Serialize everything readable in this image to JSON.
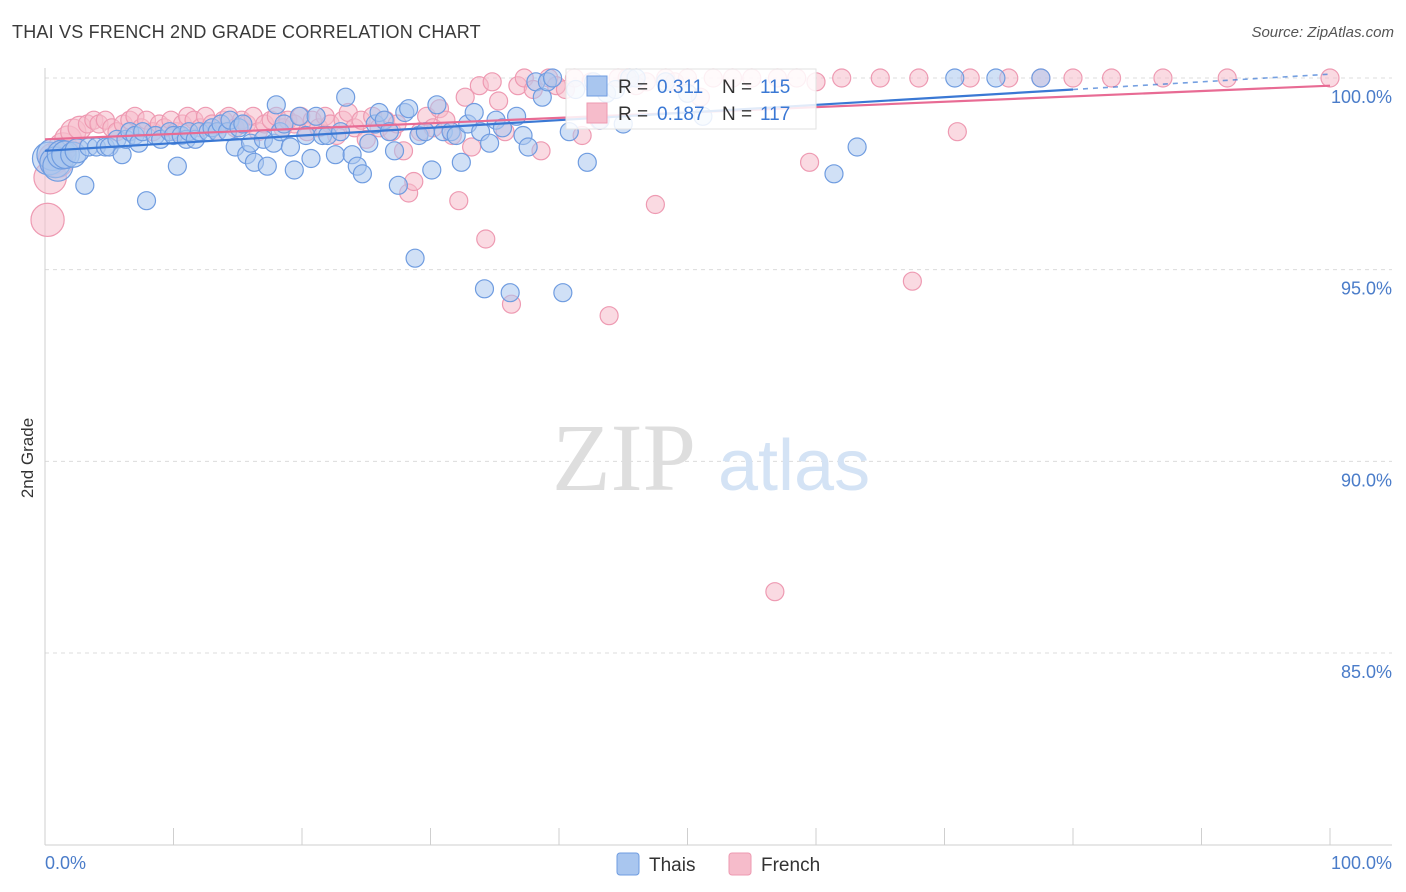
{
  "header": {
    "title": "THAI VS FRENCH 2ND GRADE CORRELATION CHART",
    "source": "Source: ZipAtlas.com"
  },
  "watermark": {
    "zip": "ZIP",
    "atlas": "atlas"
  },
  "colors": {
    "thais_fill": "#a9c6ef",
    "thais_stroke": "#6f9ce0",
    "thais_line": "#3a78d4",
    "french_fill": "#f6bccb",
    "french_stroke": "#ee9ab2",
    "french_line": "#e86b94",
    "tick_text": "#4a7cc9",
    "grid": "#dcdcdc"
  },
  "legend": {
    "rows": [
      {
        "r_label": "R = ",
        "r_value": "0.311",
        "n_label": "N = ",
        "n_value": "115"
      },
      {
        "r_label": "R = ",
        "r_value": "0.187",
        "n_label": "N = ",
        "n_value": "117"
      }
    ]
  },
  "chart_data": {
    "type": "scatter",
    "title": "THAI VS FRENCH 2ND GRADE CORRELATION CHART",
    "xlabel": "",
    "ylabel": "2nd Grade",
    "xlim": [
      0,
      100
    ],
    "ylim": [
      80.5,
      100.7
    ],
    "x_tick_labels": [
      "0.0%",
      "100.0%"
    ],
    "y_ticks": [
      100,
      95,
      90,
      85
    ],
    "y_tick_labels": [
      "100.0%",
      "95.0%",
      "90.0%",
      "85.0%"
    ],
    "grid": true,
    "legend_position": "top-center",
    "series": [
      {
        "name": "Thais",
        "r": 0.311,
        "n": 115,
        "trend": {
          "x": [
            0,
            80
          ],
          "y": [
            98.1,
            99.7
          ]
        },
        "points": [
          [
            0.3,
            97.9
          ],
          [
            0.6,
            98.0
          ],
          [
            0.8,
            97.8
          ],
          [
            1.0,
            97.7
          ],
          [
            1.3,
            98.0
          ],
          [
            1.6,
            98.0
          ],
          [
            2.2,
            98.0
          ],
          [
            2.5,
            98.1
          ],
          [
            3.1,
            97.2
          ],
          [
            3.4,
            98.2
          ],
          [
            4.0,
            98.2
          ],
          [
            4.7,
            98.2
          ],
          [
            5.0,
            98.2
          ],
          [
            5.6,
            98.4
          ],
          [
            6.0,
            98.0
          ],
          [
            6.3,
            98.4
          ],
          [
            6.6,
            98.6
          ],
          [
            7.0,
            98.5
          ],
          [
            7.3,
            98.3
          ],
          [
            7.6,
            98.6
          ],
          [
            7.9,
            96.8
          ],
          [
            8.6,
            98.5
          ],
          [
            9.0,
            98.4
          ],
          [
            9.7,
            98.6
          ],
          [
            10.0,
            98.5
          ],
          [
            10.3,
            97.7
          ],
          [
            10.6,
            98.5
          ],
          [
            11.0,
            98.4
          ],
          [
            11.2,
            98.6
          ],
          [
            11.7,
            98.4
          ],
          [
            12.0,
            98.6
          ],
          [
            12.7,
            98.6
          ],
          [
            13.0,
            98.7
          ],
          [
            13.4,
            98.6
          ],
          [
            13.7,
            98.8
          ],
          [
            14.2,
            98.6
          ],
          [
            14.4,
            98.9
          ],
          [
            14.8,
            98.2
          ],
          [
            15.1,
            98.7
          ],
          [
            15.4,
            98.8
          ],
          [
            15.7,
            98.0
          ],
          [
            16.0,
            98.3
          ],
          [
            16.3,
            97.8
          ],
          [
            17.0,
            98.4
          ],
          [
            17.3,
            97.7
          ],
          [
            17.8,
            98.3
          ],
          [
            18.0,
            99.3
          ],
          [
            18.3,
            98.6
          ],
          [
            18.6,
            98.8
          ],
          [
            19.1,
            98.2
          ],
          [
            19.4,
            97.6
          ],
          [
            19.8,
            99.0
          ],
          [
            20.3,
            98.5
          ],
          [
            20.7,
            97.9
          ],
          [
            21.1,
            99.0
          ],
          [
            21.6,
            98.5
          ],
          [
            22.0,
            98.5
          ],
          [
            22.6,
            98.0
          ],
          [
            23.0,
            98.6
          ],
          [
            23.4,
            99.5
          ],
          [
            23.9,
            98.0
          ],
          [
            24.3,
            97.7
          ],
          [
            24.7,
            97.5
          ],
          [
            25.2,
            98.3
          ],
          [
            25.7,
            98.8
          ],
          [
            26.0,
            99.1
          ],
          [
            26.4,
            98.9
          ],
          [
            26.8,
            98.6
          ],
          [
            27.2,
            98.1
          ],
          [
            27.5,
            97.2
          ],
          [
            28.0,
            99.1
          ],
          [
            28.3,
            99.2
          ],
          [
            28.8,
            95.3
          ],
          [
            29.1,
            98.5
          ],
          [
            29.6,
            98.6
          ],
          [
            30.1,
            97.6
          ],
          [
            30.5,
            99.3
          ],
          [
            31.0,
            98.6
          ],
          [
            31.6,
            98.6
          ],
          [
            32.0,
            98.5
          ],
          [
            32.4,
            97.8
          ],
          [
            32.9,
            98.8
          ],
          [
            33.4,
            99.1
          ],
          [
            33.9,
            98.6
          ],
          [
            34.2,
            94.5
          ],
          [
            34.6,
            98.3
          ],
          [
            35.1,
            98.9
          ],
          [
            35.6,
            98.7
          ],
          [
            36.2,
            94.4
          ],
          [
            36.7,
            99.0
          ],
          [
            37.2,
            98.5
          ],
          [
            37.6,
            98.2
          ],
          [
            38.2,
            99.9
          ],
          [
            38.7,
            99.5
          ],
          [
            39.1,
            99.9
          ],
          [
            39.5,
            100.0
          ],
          [
            40.3,
            94.4
          ],
          [
            40.8,
            98.6
          ],
          [
            41.3,
            99.7
          ],
          [
            42.2,
            97.8
          ],
          [
            42.7,
            99.9
          ],
          [
            43.2,
            98.9
          ],
          [
            43.7,
            99.6
          ],
          [
            44.4,
            99.7
          ],
          [
            45.0,
            98.8
          ],
          [
            45.5,
            100.0
          ],
          [
            46.0,
            100.0
          ],
          [
            48.3,
            99.9
          ],
          [
            50.0,
            99.6
          ],
          [
            51.2,
            99.0
          ],
          [
            61.4,
            97.5
          ],
          [
            63.2,
            98.2
          ],
          [
            70.8,
            100.0
          ],
          [
            74.0,
            100.0
          ],
          [
            77.5,
            100.0
          ]
        ]
      },
      {
        "name": "French",
        "r": 0.187,
        "n": 117,
        "trend": {
          "x": [
            0,
            100
          ],
          "y": [
            98.4,
            99.8
          ]
        },
        "points": [
          [
            0.2,
            96.3
          ],
          [
            0.4,
            97.4
          ],
          [
            0.7,
            97.9
          ],
          [
            1.0,
            97.8
          ],
          [
            1.4,
            98.2
          ],
          [
            1.8,
            98.4
          ],
          [
            2.2,
            98.6
          ],
          [
            2.7,
            98.7
          ],
          [
            3.3,
            98.8
          ],
          [
            3.8,
            98.9
          ],
          [
            4.2,
            98.8
          ],
          [
            4.7,
            98.9
          ],
          [
            5.2,
            98.7
          ],
          [
            5.6,
            98.6
          ],
          [
            6.1,
            98.8
          ],
          [
            6.6,
            98.9
          ],
          [
            7.0,
            99.0
          ],
          [
            7.5,
            98.7
          ],
          [
            7.9,
            98.9
          ],
          [
            8.4,
            98.6
          ],
          [
            8.9,
            98.8
          ],
          [
            9.3,
            98.7
          ],
          [
            9.8,
            98.9
          ],
          [
            10.2,
            98.6
          ],
          [
            10.7,
            98.8
          ],
          [
            11.1,
            99.0
          ],
          [
            11.6,
            98.9
          ],
          [
            12.1,
            98.7
          ],
          [
            12.5,
            99.0
          ],
          [
            13.0,
            98.8
          ],
          [
            13.4,
            98.6
          ],
          [
            13.9,
            98.9
          ],
          [
            14.3,
            99.0
          ],
          [
            14.8,
            98.7
          ],
          [
            15.3,
            98.9
          ],
          [
            15.7,
            98.8
          ],
          [
            16.2,
            99.0
          ],
          [
            16.6,
            98.6
          ],
          [
            17.1,
            98.8
          ],
          [
            17.6,
            98.9
          ],
          [
            18.0,
            99.0
          ],
          [
            18.5,
            98.7
          ],
          [
            18.9,
            98.9
          ],
          [
            19.4,
            98.8
          ],
          [
            19.9,
            99.0
          ],
          [
            20.4,
            98.6
          ],
          [
            20.8,
            98.9
          ],
          [
            21.3,
            98.7
          ],
          [
            21.8,
            99.0
          ],
          [
            22.2,
            98.8
          ],
          [
            22.7,
            98.5
          ],
          [
            23.2,
            98.9
          ],
          [
            23.6,
            99.1
          ],
          [
            24.1,
            98.7
          ],
          [
            24.6,
            98.9
          ],
          [
            25.0,
            98.4
          ],
          [
            25.5,
            99.0
          ],
          [
            26.0,
            98.7
          ],
          [
            26.5,
            98.9
          ],
          [
            27.0,
            98.6
          ],
          [
            27.4,
            98.8
          ],
          [
            27.9,
            98.1
          ],
          [
            28.3,
            97.0
          ],
          [
            28.7,
            97.3
          ],
          [
            29.2,
            98.6
          ],
          [
            29.7,
            99.0
          ],
          [
            30.2,
            98.7
          ],
          [
            30.7,
            99.2
          ],
          [
            31.2,
            98.9
          ],
          [
            31.7,
            98.5
          ],
          [
            32.2,
            96.8
          ],
          [
            32.7,
            99.5
          ],
          [
            33.2,
            98.2
          ],
          [
            33.8,
            99.8
          ],
          [
            34.3,
            95.8
          ],
          [
            34.8,
            99.9
          ],
          [
            35.3,
            99.4
          ],
          [
            35.8,
            98.6
          ],
          [
            36.3,
            94.1
          ],
          [
            36.8,
            99.8
          ],
          [
            37.3,
            100.0
          ],
          [
            38.0,
            99.7
          ],
          [
            38.6,
            98.1
          ],
          [
            39.2,
            100.0
          ],
          [
            39.8,
            99.8
          ],
          [
            40.5,
            99.7
          ],
          [
            41.2,
            100.0
          ],
          [
            41.8,
            98.5
          ],
          [
            42.5,
            99.9
          ],
          [
            43.1,
            98.9
          ],
          [
            43.9,
            93.8
          ],
          [
            44.6,
            100.0
          ],
          [
            45.3,
            100.0
          ],
          [
            46.0,
            99.8
          ],
          [
            46.8,
            99.9
          ],
          [
            47.5,
            96.7
          ],
          [
            48.3,
            100.0
          ],
          [
            49.0,
            99.9
          ],
          [
            50.0,
            100.0
          ],
          [
            51.0,
            99.5
          ],
          [
            52.0,
            100.0
          ],
          [
            53.5,
            100.0
          ],
          [
            55.0,
            100.0
          ],
          [
            57.0,
            100.0
          ],
          [
            58.5,
            100.0
          ],
          [
            60.0,
            99.9
          ],
          [
            62.0,
            100.0
          ],
          [
            65.0,
            100.0
          ],
          [
            68.0,
            100.0
          ],
          [
            72.0,
            100.0
          ],
          [
            75.0,
            100.0
          ],
          [
            77.5,
            100.0
          ],
          [
            80.0,
            100.0
          ],
          [
            83.0,
            100.0
          ],
          [
            87.0,
            100.0
          ],
          [
            92.0,
            100.0
          ],
          [
            100.0,
            100.0
          ]
        ]
      }
    ],
    "extra_french_points": [
      [
        59.5,
        97.8
      ],
      [
        67.5,
        94.7
      ],
      [
        71.0,
        98.6
      ],
      [
        56.8,
        86.6
      ]
    ]
  },
  "bottom_legend": {
    "items": [
      "Thais",
      "French"
    ]
  }
}
